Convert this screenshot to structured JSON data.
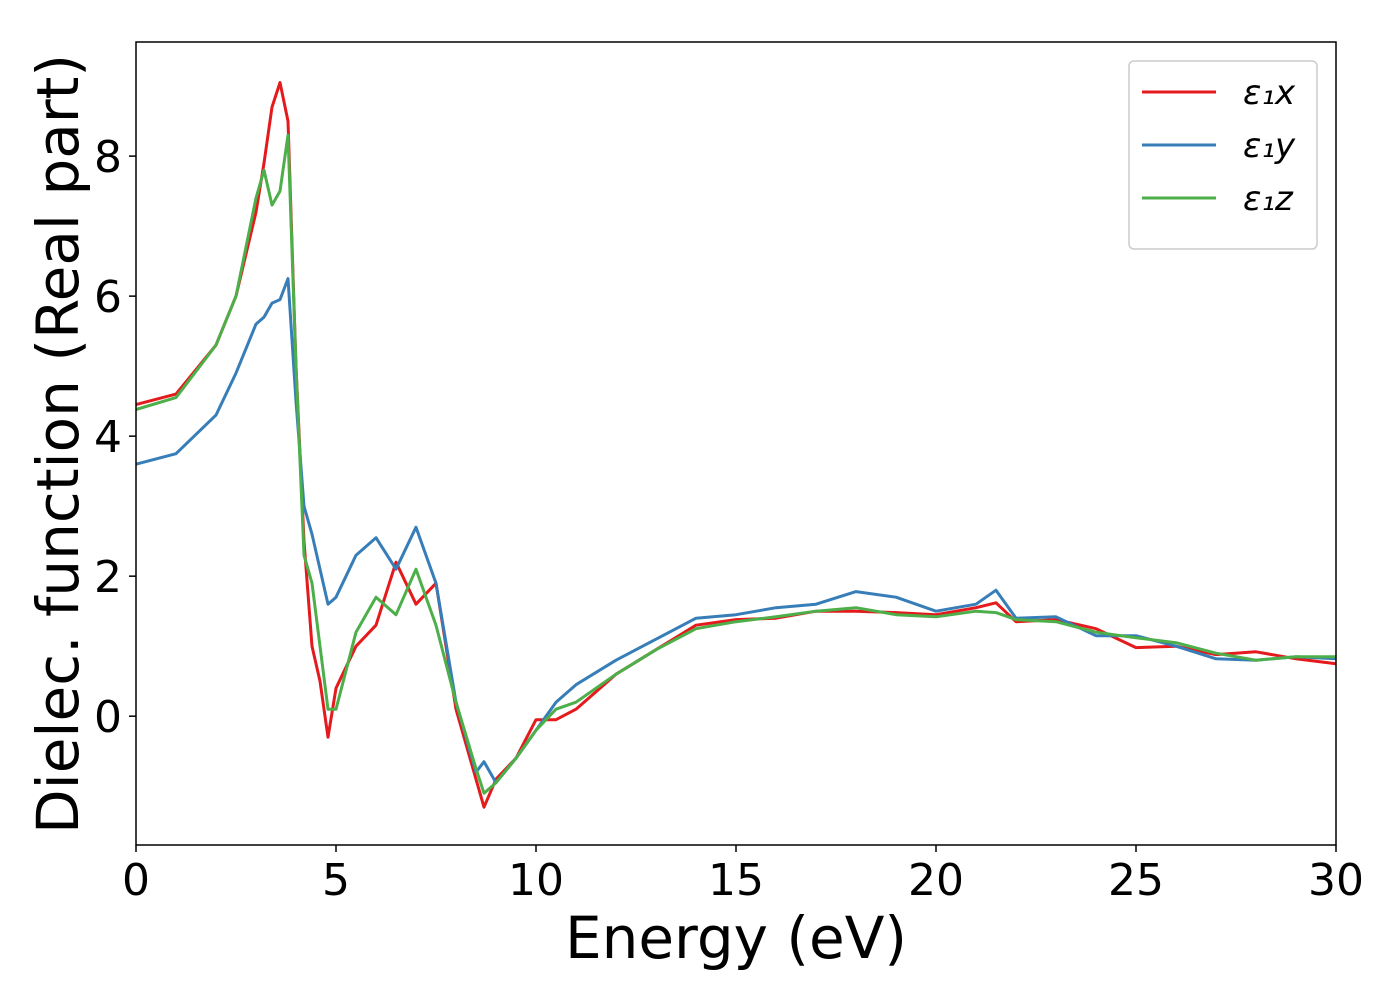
{
  "chart_data": {
    "type": "line",
    "xlabel": "Energy (eV)",
    "ylabel": "Dielec. function (Real part)",
    "x": [
      0,
      1,
      2,
      2.5,
      3,
      3.2,
      3.4,
      3.6,
      3.8,
      4,
      4.2,
      4.4,
      4.6,
      4.8,
      5,
      5.5,
      6,
      6.5,
      7,
      7.5,
      8,
      8.5,
      8.7,
      9,
      9.5,
      10,
      10.5,
      11,
      12,
      13,
      14,
      15,
      16,
      17,
      18,
      19,
      20,
      21,
      21.5,
      22,
      23,
      24,
      25,
      26,
      27,
      28,
      29,
      30
    ],
    "series": [
      {
        "name": "ε₁x",
        "color": "#e41a1c",
        "values": [
          4.45,
          4.6,
          5.3,
          6.0,
          7.2,
          7.9,
          8.7,
          9.05,
          8.5,
          5.0,
          2.5,
          1.0,
          0.5,
          -0.3,
          0.4,
          1.0,
          1.3,
          2.2,
          1.6,
          1.9,
          0.1,
          -0.9,
          -1.3,
          -0.9,
          -0.6,
          -0.05,
          -0.05,
          0.1,
          0.6,
          0.95,
          1.3,
          1.38,
          1.4,
          1.5,
          1.5,
          1.48,
          1.45,
          1.55,
          1.62,
          1.35,
          1.38,
          1.25,
          0.98,
          1.0,
          0.88,
          0.92,
          0.82,
          0.75
        ]
      },
      {
        "name": "ε₁y",
        "color": "#377eb8",
        "values": [
          3.6,
          3.75,
          4.3,
          4.9,
          5.6,
          5.7,
          5.9,
          5.95,
          6.25,
          4.5,
          3.0,
          2.6,
          2.1,
          1.6,
          1.7,
          2.3,
          2.55,
          2.1,
          2.7,
          1.9,
          0.2,
          -0.8,
          -0.65,
          -0.95,
          -0.6,
          -0.2,
          0.2,
          0.45,
          0.8,
          1.1,
          1.4,
          1.45,
          1.55,
          1.6,
          1.78,
          1.7,
          1.5,
          1.6,
          1.8,
          1.4,
          1.42,
          1.15,
          1.15,
          1.0,
          0.82,
          0.8,
          0.85,
          0.82
        ]
      },
      {
        "name": "ε₁z",
        "color": "#4daf4a",
        "values": [
          4.38,
          4.55,
          5.3,
          6.0,
          7.4,
          7.8,
          7.3,
          7.5,
          8.3,
          5.0,
          2.3,
          1.9,
          1.0,
          0.1,
          0.1,
          1.2,
          1.7,
          1.45,
          2.1,
          1.3,
          0.2,
          -0.75,
          -1.1,
          -0.95,
          -0.6,
          -0.2,
          0.1,
          0.2,
          0.6,
          0.95,
          1.25,
          1.35,
          1.42,
          1.5,
          1.55,
          1.45,
          1.42,
          1.5,
          1.48,
          1.38,
          1.35,
          1.2,
          1.12,
          1.05,
          0.9,
          0.8,
          0.85,
          0.85
        ]
      }
    ],
    "xlim": [
      0,
      30
    ],
    "xticks": [
      0,
      5,
      10,
      15,
      20,
      25,
      30
    ],
    "ylim": [
      -1.84,
      9.63
    ],
    "yticks": [
      0,
      2,
      4,
      6,
      8
    ],
    "grid": false,
    "legend": "upper right"
  }
}
